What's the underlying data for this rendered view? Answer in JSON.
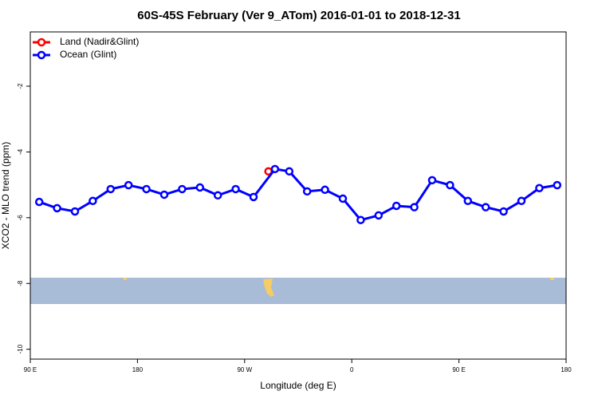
{
  "chart_data": {
    "type": "line",
    "title": "60S-45S February (Ver 9_ATom)   2016-01-01 to 2018-12-31",
    "xlabel": "Longitude (deg E)",
    "ylabel": "XCO2 - MLO trend (ppm)",
    "xlim": [
      90,
      540
    ],
    "xticks": [
      {
        "value": 90,
        "label": "90 E"
      },
      {
        "value": 180,
        "label": "180"
      },
      {
        "value": 270,
        "label": "90 W"
      },
      {
        "value": 360,
        "label": "0"
      },
      {
        "value": 450,
        "label": "90 E"
      },
      {
        "value": 540,
        "label": "180"
      }
    ],
    "ylim": [
      -10.3,
      -0.35
    ],
    "yticks": [
      -2,
      -4,
      -6,
      -8,
      -10
    ],
    "legend": "top-left",
    "series": [
      {
        "name": "Land (Nadir&Glint)",
        "color": "#ff0000",
        "x": [
          290
        ],
        "values": [
          -4.59
        ]
      },
      {
        "name": "Ocean (Glint)",
        "color": "#0000ff",
        "x": [
          97.5,
          112.5,
          127.5,
          142.5,
          157.5,
          172.5,
          187.5,
          202.5,
          217.5,
          232.5,
          247.5,
          262.5,
          277.5,
          295.5,
          307.5,
          322.5,
          337.5,
          352.5,
          367.5,
          382.5,
          397.5,
          412.5,
          427.5,
          442.5,
          457.5,
          472.5,
          487.5,
          502.5,
          517.5,
          532.5
        ],
        "values": [
          -5.52,
          -5.71,
          -5.81,
          -5.49,
          -5.13,
          -5.01,
          -5.13,
          -5.3,
          -5.13,
          -5.08,
          -5.32,
          -5.13,
          -5.37,
          -4.52,
          -4.59,
          -5.2,
          -5.15,
          -5.42,
          -6.07,
          -5.93,
          -5.64,
          -5.68,
          -4.86,
          -5.01,
          -5.49,
          -5.68,
          -5.81,
          -5.49,
          -5.1,
          -5.01
        ]
      }
    ]
  }
}
